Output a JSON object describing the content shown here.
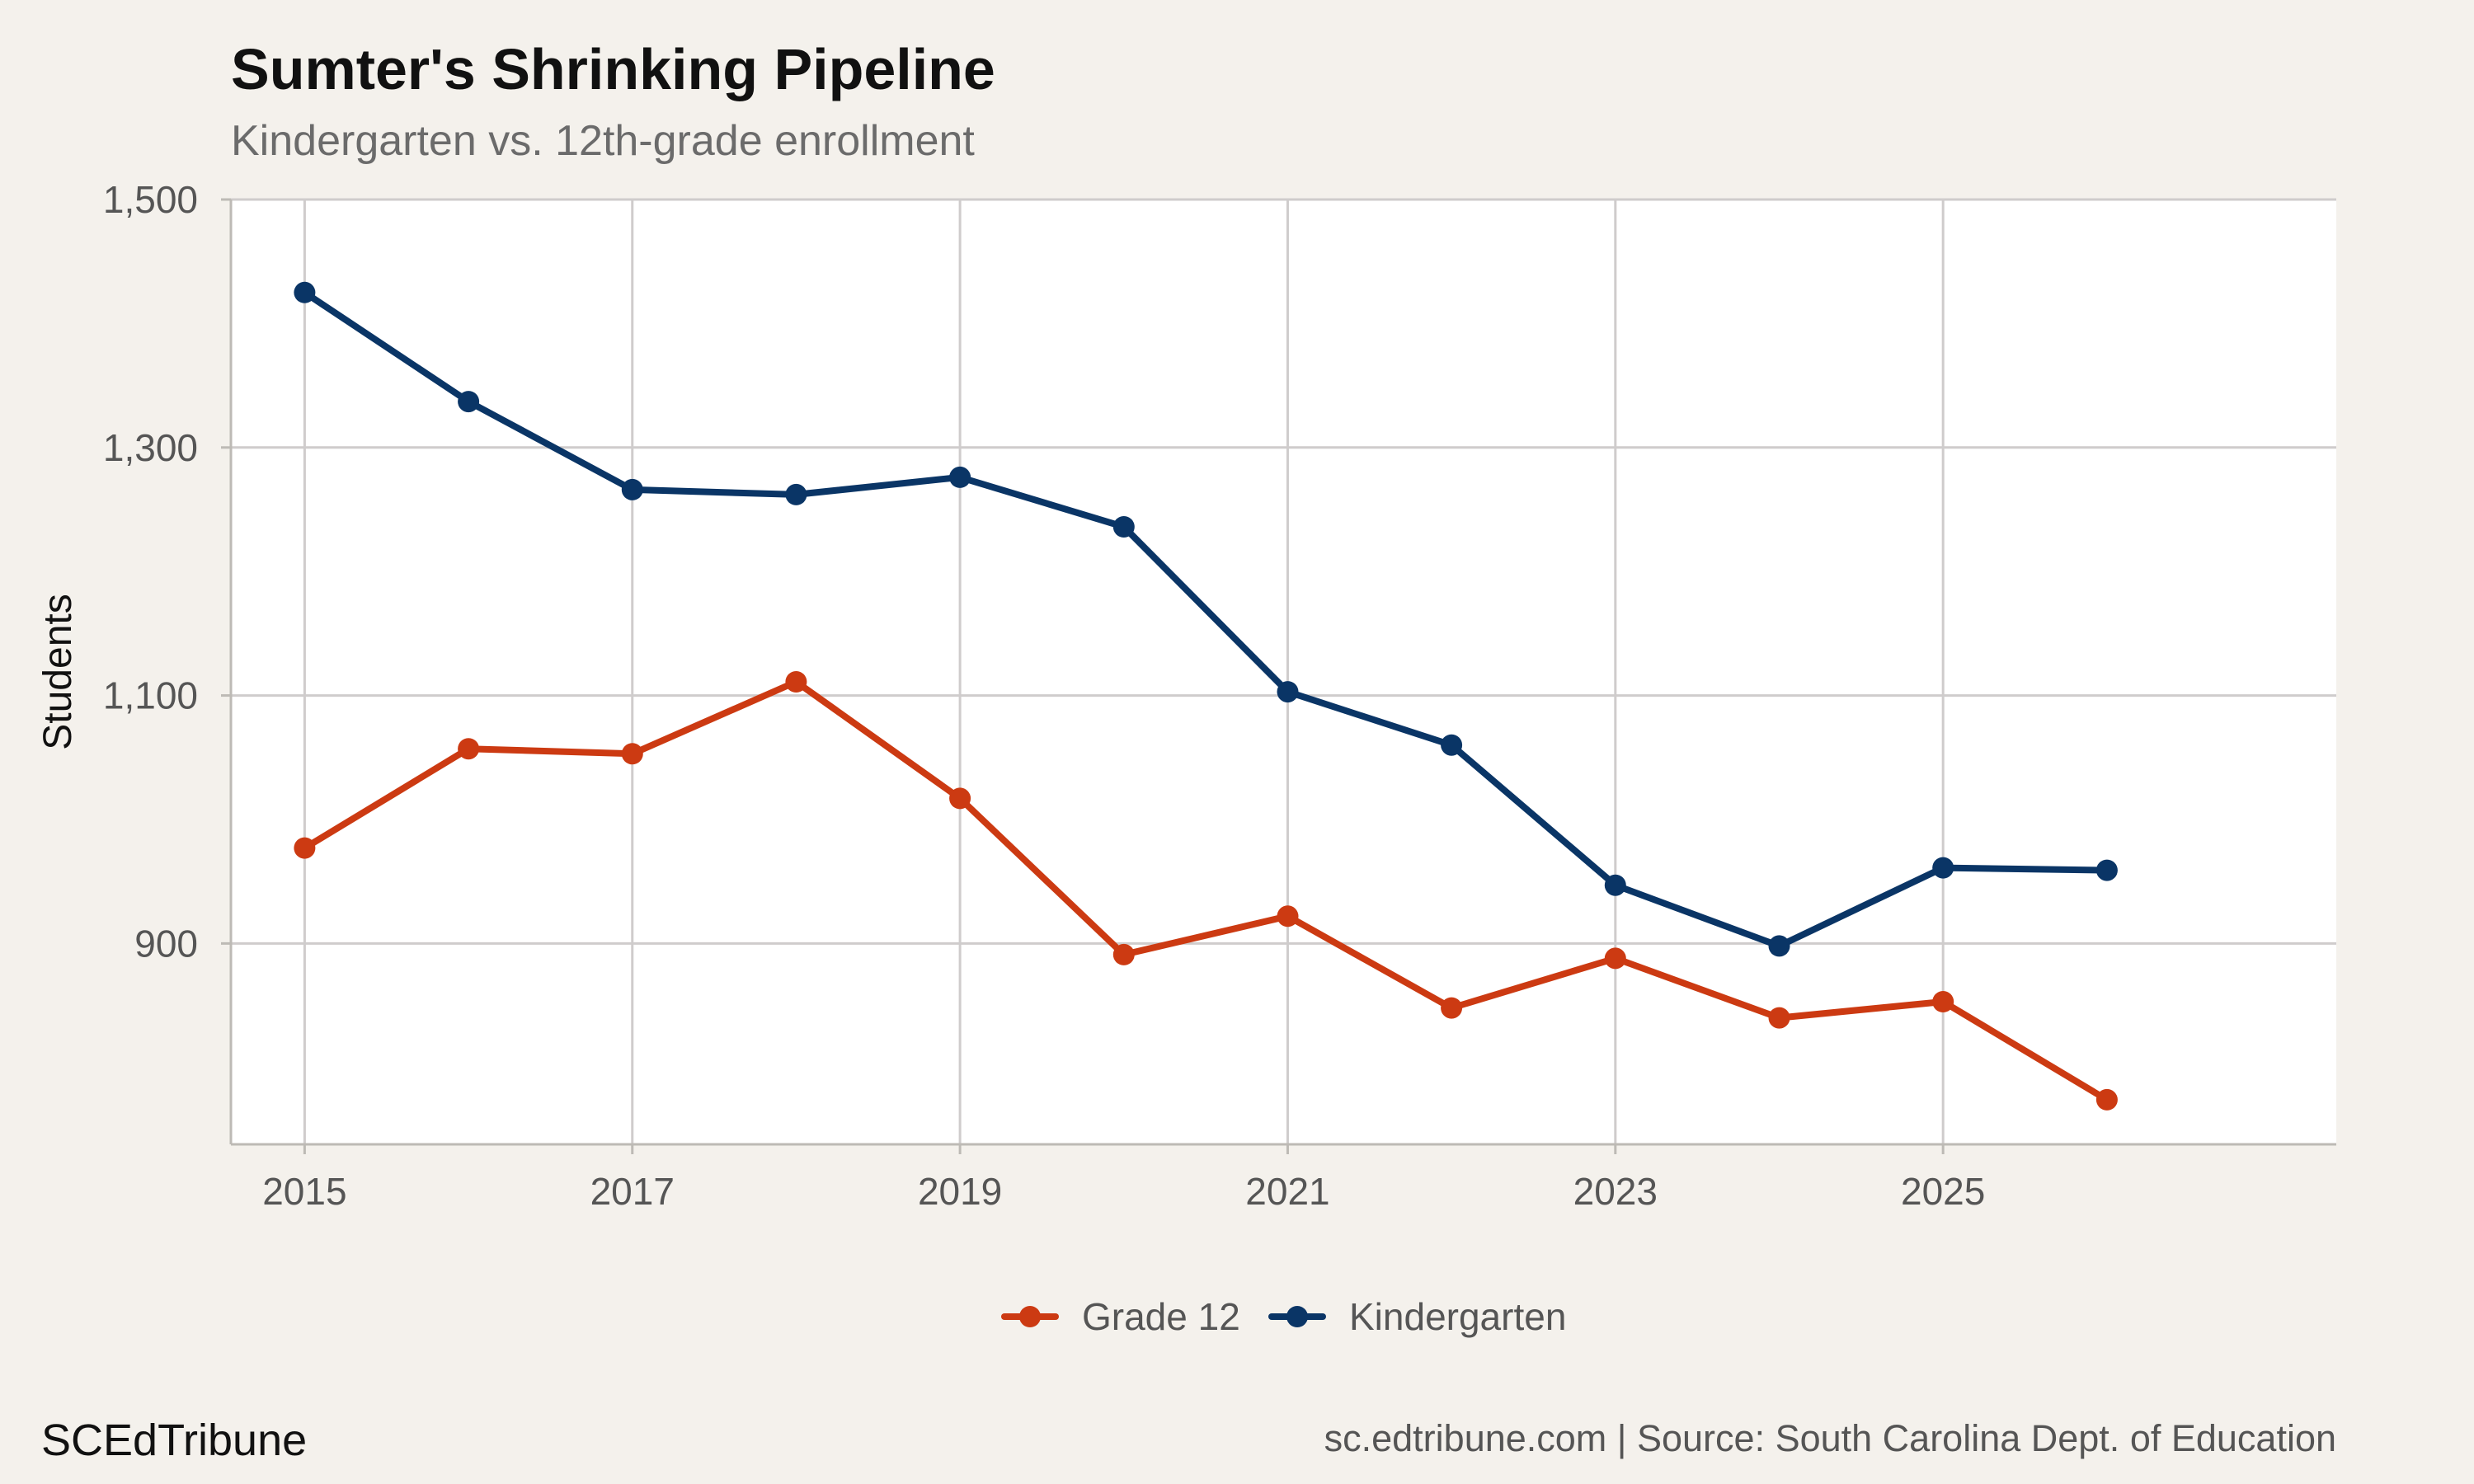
{
  "chart_data": {
    "type": "line",
    "title": "Sumter's Shrinking Pipeline",
    "subtitle": "Kindergarten vs. 12th-grade enrollment",
    "xlabel": "",
    "ylabel": "Students",
    "x": [
      2015,
      2016,
      2017,
      2018,
      2019,
      2020,
      2021,
      2022,
      2023,
      2024,
      2025,
      2026
    ],
    "xlim": [
      2014.55,
      2027.4
    ],
    "ylim": [
      738,
      1500
    ],
    "x_ticks": [
      "2015",
      "2017",
      "2019",
      "2021",
      "2023",
      "2025"
    ],
    "y_ticks": [
      "900",
      "1,100",
      "1,300",
      "1,500"
    ],
    "grid": true,
    "legend_position": "bottom",
    "series": [
      {
        "name": "Grade 12",
        "color": "#cc3a12",
        "values": [
          977,
          1057,
          1053,
          1111,
          1017,
          891,
          922,
          848,
          888,
          840,
          853,
          774
        ]
      },
      {
        "name": "Kindergarten",
        "color": "#0a3566",
        "values": [
          1425,
          1337,
          1266,
          1262,
          1276,
          1236,
          1103,
          1060,
          947,
          898,
          961,
          959
        ]
      }
    ]
  },
  "footer": {
    "brand": "SCEdTribune",
    "source": "sc.edtribune.com | Source: South Carolina Dept. of Education"
  }
}
